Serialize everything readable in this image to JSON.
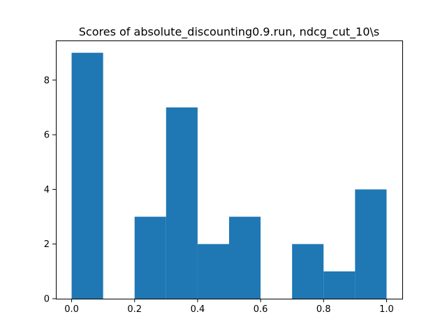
{
  "chart_data": {
    "type": "bar",
    "title": "Scores of absolute_discounting0.9.run, ndcg_cut_10\\s",
    "xlabel": "",
    "ylabel": "",
    "bin_edges": [
      0.0,
      0.1,
      0.2,
      0.3,
      0.4,
      0.5,
      0.6,
      0.7,
      0.8,
      0.9,
      1.0
    ],
    "values": [
      9,
      0,
      3,
      7,
      2,
      3,
      0,
      2,
      1,
      4
    ],
    "xlim": [
      -0.05,
      1.05
    ],
    "ylim": [
      0,
      9.45
    ],
    "xticks": [
      0.0,
      0.2,
      0.4,
      0.6,
      0.8,
      1.0
    ],
    "xtick_labels": [
      "0.0",
      "0.2",
      "0.4",
      "0.6",
      "0.8",
      "1.0"
    ],
    "yticks": [
      0,
      2,
      4,
      6,
      8
    ],
    "ytick_labels": [
      "0",
      "2",
      "4",
      "6",
      "8"
    ],
    "grid": false,
    "legend": null,
    "bar_color": "#1f77b4"
  }
}
